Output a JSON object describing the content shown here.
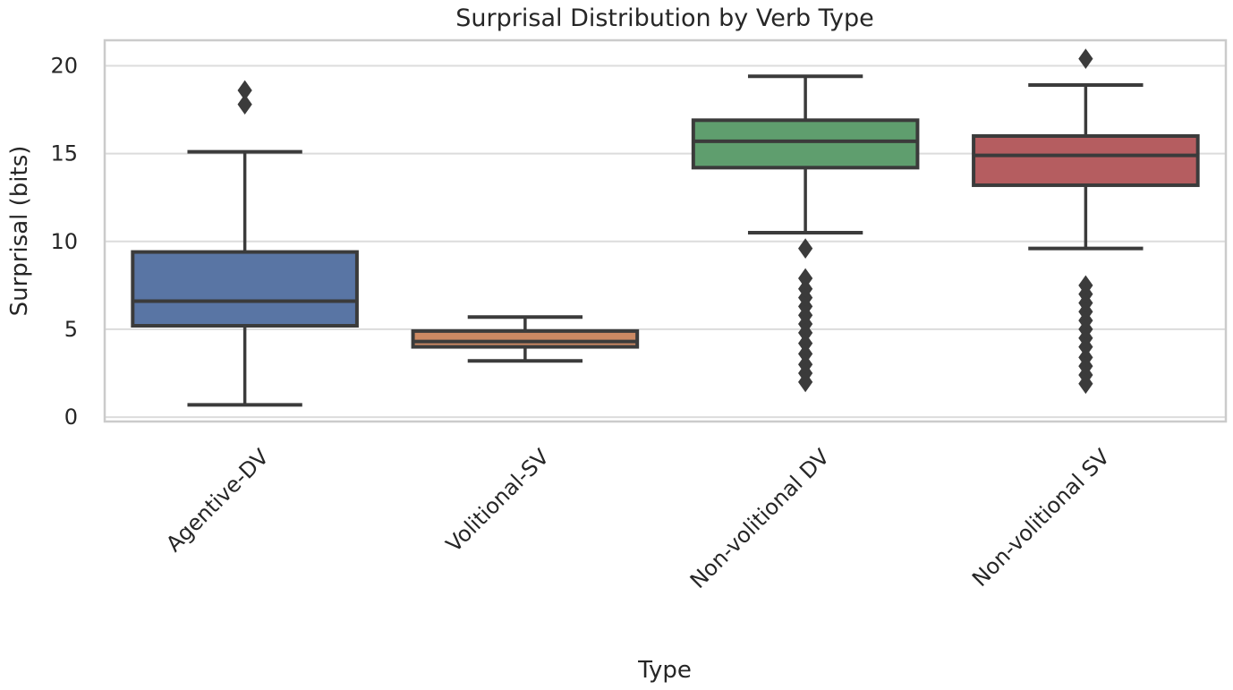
{
  "chart_data": {
    "type": "box",
    "title": "Surprisal Distribution by Verb Type",
    "xlabel": "Type",
    "ylabel": "Surprisal (bits)",
    "categories": [
      "Agentive-DV",
      "Volitional-SV",
      "Non-volitional DV",
      "Non-volitional SV"
    ],
    "yticks": [
      0,
      5,
      10,
      15,
      20
    ],
    "ylim": [
      -0.25,
      21.45
    ],
    "grid": "horizontal",
    "legend_position": "none",
    "box_width_fraction": 0.8,
    "series": [
      {
        "name": "Agentive-DV",
        "color": "#5975A4",
        "whisker_low": 0.7,
        "q1": 5.2,
        "median": 6.6,
        "q3": 9.4,
        "whisker_high": 15.1,
        "outliers": [
          17.8,
          18.6
        ]
      },
      {
        "name": "Volitional-SV",
        "color": "#CC8963",
        "whisker_low": 3.2,
        "q1": 4.0,
        "median": 4.3,
        "q3": 4.9,
        "whisker_high": 5.7,
        "outliers": []
      },
      {
        "name": "Non-volitional DV",
        "color": "#5F9E6E",
        "whisker_low": 10.5,
        "q1": 14.2,
        "median": 15.7,
        "q3": 16.9,
        "whisker_high": 19.4,
        "outliers": [
          9.6,
          7.9,
          7.3,
          6.8,
          6.3,
          5.8,
          5.3,
          4.8,
          4.2,
          3.6,
          3.0,
          2.5,
          2.0
        ]
      },
      {
        "name": "Non-volitional SV",
        "color": "#B55D60",
        "whisker_low": 9.6,
        "q1": 13.2,
        "median": 14.9,
        "q3": 16.0,
        "whisker_high": 18.9,
        "outliers": [
          20.4,
          7.5,
          7.0,
          6.5,
          6.0,
          5.5,
          5.0,
          4.5,
          4.0,
          3.4,
          2.9,
          2.4,
          1.9
        ]
      }
    ],
    "styles": {
      "line_color": "#3b3b3b",
      "grid_color": "#dcdcdc",
      "spine_color": "#cbcbcb",
      "text_color": "#262626",
      "background": "#ffffff"
    }
  }
}
